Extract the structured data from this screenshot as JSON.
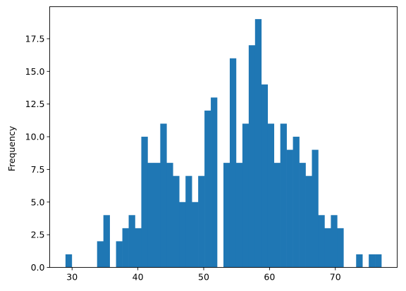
{
  "chart_data": {
    "type": "bar",
    "title": "",
    "xlabel": "",
    "ylabel": "Frequency",
    "xlim": [
      26.6,
      79.4
    ],
    "ylim": [
      0,
      19.95
    ],
    "bar_color": "#1f77b4",
    "bin_width": 0.96,
    "bin_starts": [
      29.0,
      29.96,
      30.92,
      31.88,
      32.84,
      33.8,
      34.76,
      35.72,
      36.68,
      37.64,
      38.6,
      39.56,
      40.52,
      41.48,
      42.44,
      43.4,
      44.36,
      45.32,
      46.28,
      47.24,
      48.2,
      49.16,
      50.12,
      51.08,
      52.04,
      53.0,
      53.96,
      54.92,
      55.88,
      56.84,
      57.8,
      58.76,
      59.72,
      60.68,
      61.64,
      62.6,
      63.56,
      64.52,
      65.48,
      66.44,
      67.4,
      68.36,
      69.32,
      70.28,
      71.24,
      72.2,
      73.16,
      74.12,
      75.08,
      76.04
    ],
    "values": [
      1,
      0,
      0,
      0,
      0,
      2,
      4,
      0,
      2,
      3,
      4,
      3,
      10,
      8,
      8,
      11,
      8,
      7,
      5,
      7,
      5,
      7,
      12,
      13,
      0,
      8,
      16,
      8,
      11,
      17,
      19,
      14,
      11,
      8,
      11,
      9,
      10,
      8,
      7,
      9,
      4,
      3,
      4,
      3,
      0,
      0,
      1,
      0,
      1,
      1
    ],
    "x_ticks": [
      30,
      40,
      50,
      60,
      70
    ],
    "y_ticks": [
      0.0,
      2.5,
      5.0,
      7.5,
      10.0,
      12.5,
      15.0,
      17.5
    ],
    "x_tick_labels": [
      "30",
      "40",
      "50",
      "60",
      "70"
    ],
    "y_tick_labels": [
      "0.0",
      "2.5",
      "5.0",
      "7.5",
      "10.0",
      "12.5",
      "15.0",
      "17.5"
    ],
    "grid": false,
    "legend": "none"
  }
}
